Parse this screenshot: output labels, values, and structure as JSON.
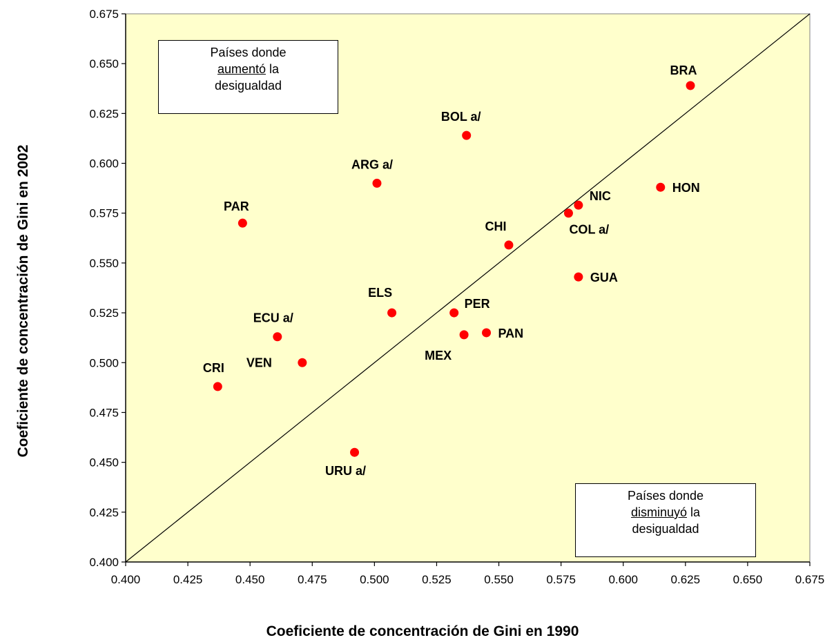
{
  "chart_data": {
    "type": "scatter",
    "title": "",
    "xlabel": "Coeficiente de concentración de Gini  en 1990",
    "ylabel": "Coeficiente de concentración de Gini  en 2002",
    "xlim": [
      0.4,
      0.675
    ],
    "ylim": [
      0.4,
      0.675
    ],
    "xticks": [
      "0.400",
      "0.425",
      "0.450",
      "0.475",
      "0.500",
      "0.525",
      "0.550",
      "0.575",
      "0.600",
      "0.625",
      "0.650",
      "0.675"
    ],
    "yticks": [
      "0.400",
      "0.425",
      "0.450",
      "0.475",
      "0.500",
      "0.525",
      "0.550",
      "0.575",
      "0.600",
      "0.625",
      "0.650",
      "0.675"
    ],
    "grid": false,
    "reference_line": "diagonal y = x",
    "plot_background": "#ffffcc",
    "marker_color": "#ff0000",
    "points": [
      {
        "label": "BRA",
        "x": 0.627,
        "y": 0.639
      },
      {
        "label": "BOL a/",
        "x": 0.537,
        "y": 0.614
      },
      {
        "label": "ARG a/",
        "x": 0.501,
        "y": 0.59
      },
      {
        "label": "HON",
        "x": 0.615,
        "y": 0.588
      },
      {
        "label": "NIC",
        "x": 0.582,
        "y": 0.579
      },
      {
        "label": "COL a/",
        "x": 0.578,
        "y": 0.575
      },
      {
        "label": "PAR",
        "x": 0.447,
        "y": 0.57
      },
      {
        "label": "CHI",
        "x": 0.554,
        "y": 0.559
      },
      {
        "label": "GUA",
        "x": 0.582,
        "y": 0.543
      },
      {
        "label": "ELS",
        "x": 0.507,
        "y": 0.525
      },
      {
        "label": "PER",
        "x": 0.532,
        "y": 0.525
      },
      {
        "label": "PAN",
        "x": 0.545,
        "y": 0.515
      },
      {
        "label": "MEX",
        "x": 0.536,
        "y": 0.514
      },
      {
        "label": "ECU a/",
        "x": 0.461,
        "y": 0.513
      },
      {
        "label": "VEN",
        "x": 0.471,
        "y": 0.5
      },
      {
        "label": "CRI",
        "x": 0.437,
        "y": 0.488
      },
      {
        "label": "URU a/",
        "x": 0.492,
        "y": 0.455
      }
    ],
    "annotations": [
      {
        "line1": "Países donde",
        "underlined": "aumentó",
        "rest": " la",
        "line3": "desigualdad",
        "position": "top-left"
      },
      {
        "line1": "Países donde",
        "underlined": "disminuyó",
        "rest": " la",
        "line3": "desigualdad",
        "position": "bottom-right"
      }
    ]
  }
}
